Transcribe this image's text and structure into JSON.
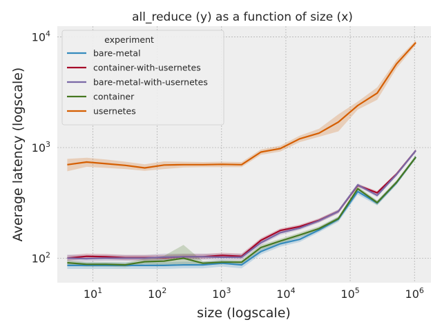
{
  "chart_data": {
    "type": "line",
    "title": "all_reduce (y) as a function of size (x)",
    "xlabel": "size (logscale)",
    "ylabel": "Average latency (logscale)",
    "xscale": "log",
    "yscale": "log",
    "xlim": [
      2.8,
      1800000
    ],
    "ylim": [
      60,
      12500
    ],
    "x_ticks": [
      {
        "value": 10,
        "base": "10",
        "exp": "1"
      },
      {
        "value": 100,
        "base": "10",
        "exp": "2"
      },
      {
        "value": 1000,
        "base": "10",
        "exp": "3"
      },
      {
        "value": 10000,
        "base": "10",
        "exp": "4"
      },
      {
        "value": 100000,
        "base": "10",
        "exp": "5"
      },
      {
        "value": 1000000,
        "base": "10",
        "exp": "6"
      }
    ],
    "y_ticks": [
      {
        "value": 100,
        "base": "10",
        "exp": "2"
      },
      {
        "value": 1000,
        "base": "10",
        "exp": "3"
      },
      {
        "value": 10000,
        "base": "10",
        "exp": "4"
      }
    ],
    "grid": true,
    "legend": {
      "title": "experiment",
      "placement": "top-left"
    },
    "x": [
      4,
      8,
      16,
      32,
      64,
      128,
      256,
      512,
      1024,
      2048,
      4096,
      8192,
      16384,
      32768,
      65536,
      131072,
      262144,
      524288,
      1048576
    ],
    "series": [
      {
        "name": "bare-metal",
        "color": "#348abd",
        "values": [
          86,
          86,
          86,
          86,
          86,
          86,
          87,
          87,
          90,
          87,
          115,
          135,
          148,
          180,
          225,
          400,
          315,
          480,
          820
        ],
        "lower": [
          80,
          80,
          80,
          80,
          80,
          80,
          81,
          81,
          84,
          81,
          108,
          127,
          140,
          171,
          213,
          375,
          300,
          460,
          790
        ],
        "upper": [
          92,
          92,
          92,
          92,
          92,
          92,
          93,
          93,
          96,
          93,
          122,
          143,
          157,
          190,
          237,
          425,
          330,
          500,
          850
        ]
      },
      {
        "name": "container-with-usernetes",
        "color": "#a60628",
        "values": [
          100,
          104,
          103,
          101,
          101,
          101,
          103,
          103,
          106,
          104,
          145,
          178,
          193,
          220,
          265,
          455,
          390,
          575,
          940
        ],
        "lower": [
          95,
          99,
          98,
          96,
          96,
          96,
          98,
          98,
          101,
          99,
          139,
          170,
          185,
          211,
          255,
          440,
          375,
          555,
          910
        ],
        "upper": [
          106,
          110,
          109,
          107,
          107,
          107,
          109,
          109,
          112,
          110,
          152,
          186,
          201,
          229,
          275,
          470,
          405,
          595,
          970
        ]
      },
      {
        "name": "bare-metal-with-usernetes",
        "color": "#7a68a6",
        "values": [
          100,
          99,
          100,
          100,
          100,
          102,
          103,
          103,
          102,
          102,
          138,
          170,
          187,
          218,
          265,
          460,
          370,
          570,
          940
        ],
        "lower": [
          93,
          93,
          94,
          94,
          94,
          96,
          97,
          97,
          96,
          96,
          131,
          162,
          179,
          209,
          255,
          445,
          355,
          550,
          910
        ],
        "upper": [
          108,
          106,
          107,
          107,
          107,
          110,
          110,
          110,
          109,
          109,
          145,
          178,
          195,
          227,
          275,
          475,
          385,
          590,
          970
        ]
      },
      {
        "name": "container",
        "color": "#467821",
        "values": [
          91,
          88,
          88,
          87,
          93,
          94,
          100,
          90,
          92,
          92,
          125,
          143,
          162,
          185,
          228,
          425,
          318,
          485,
          820
        ],
        "lower": [
          86,
          84,
          84,
          83,
          88,
          87,
          88,
          86,
          88,
          88,
          118,
          136,
          154,
          176,
          218,
          405,
          303,
          465,
          790
        ],
        "upper": [
          96,
          92,
          92,
          91,
          99,
          105,
          132,
          94,
          96,
          96,
          132,
          150,
          170,
          194,
          238,
          445,
          333,
          505,
          850
        ]
      },
      {
        "name": "usernetes",
        "color": "#d55e00",
        "values": [
          700,
          740,
          715,
          690,
          655,
          695,
          700,
          700,
          705,
          700,
          910,
          980,
          1200,
          1350,
          1700,
          2400,
          3100,
          5700,
          8900
        ],
        "lower": [
          610,
          670,
          655,
          640,
          615,
          640,
          660,
          665,
          665,
          665,
          860,
          920,
          1120,
          1250,
          1400,
          2200,
          2700,
          5200,
          8500
        ],
        "upper": [
          790,
          810,
          780,
          745,
          705,
          750,
          745,
          740,
          745,
          740,
          960,
          1040,
          1280,
          1480,
          2000,
          2600,
          3500,
          6200,
          9300
        ]
      }
    ]
  }
}
